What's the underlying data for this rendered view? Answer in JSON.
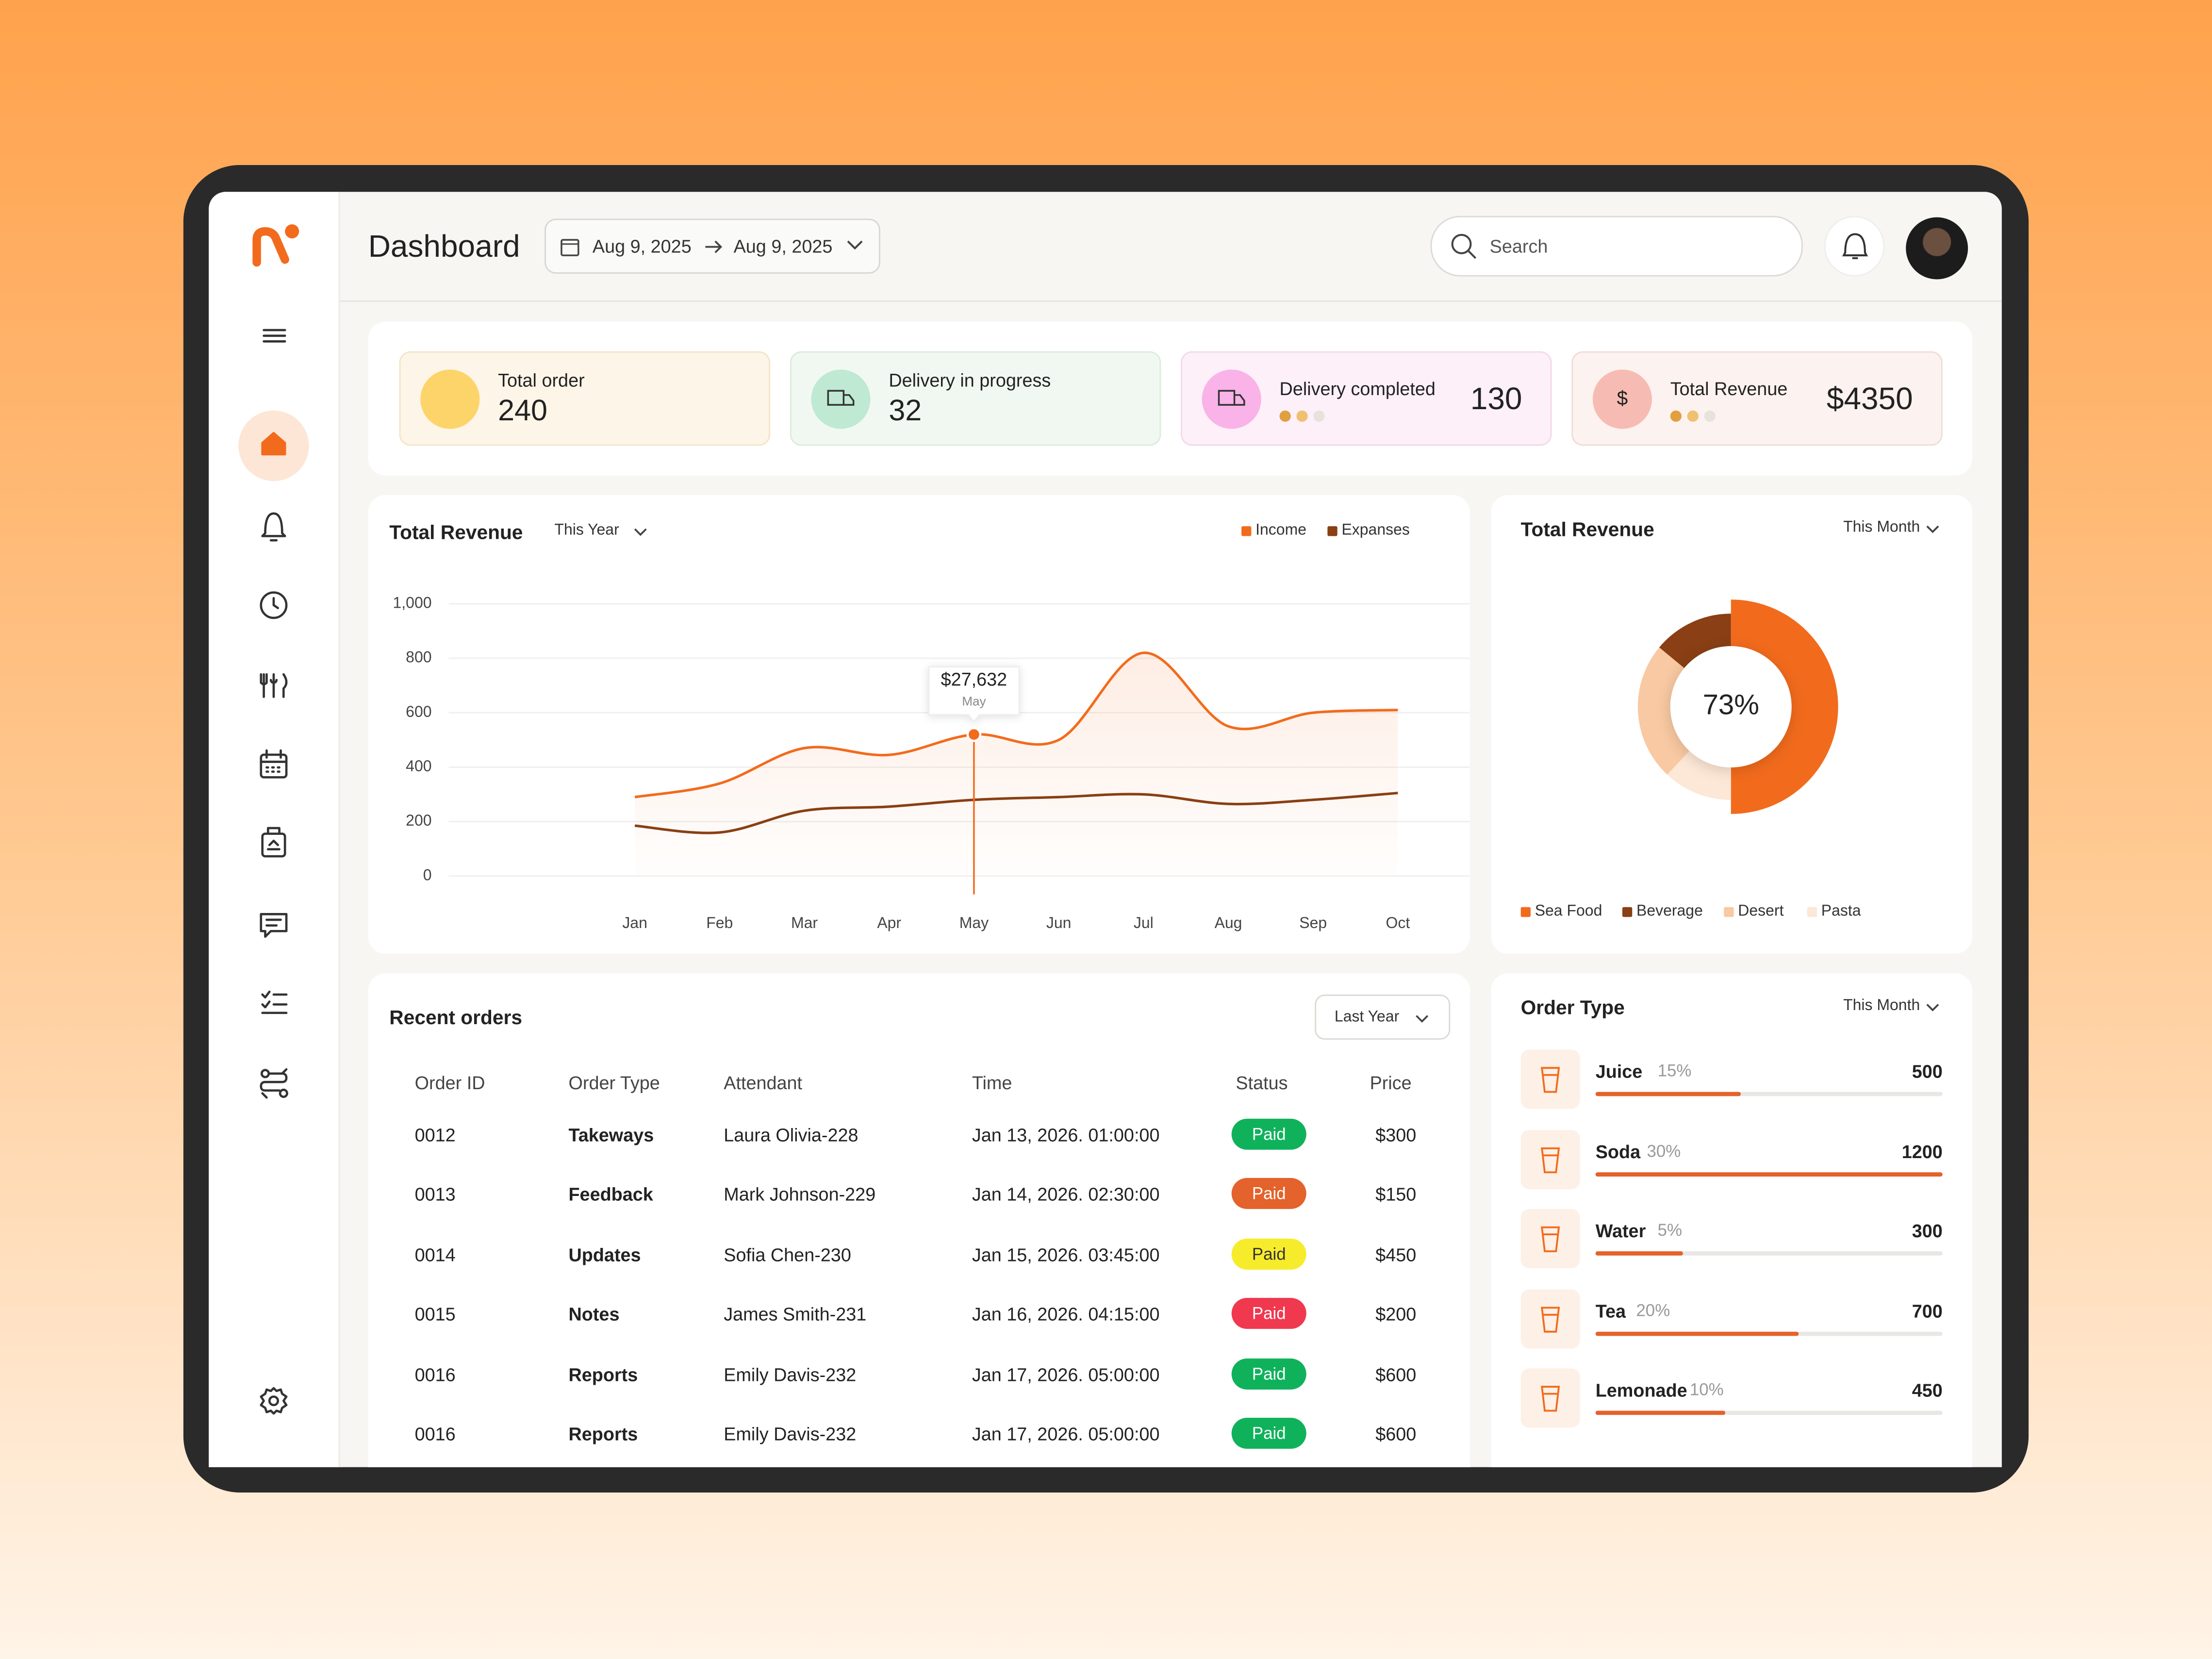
{
  "header": {
    "title": "Dashboard",
    "date_from": "Aug 9, 2025",
    "date_to": "Aug 9, 2025",
    "search_placeholder": "Search"
  },
  "kpis": [
    {
      "label": "Total order",
      "value": 240
    },
    {
      "label": "Delivery in progress",
      "value": 32
    },
    {
      "label": "Delivery completed",
      "value": 130
    },
    {
      "label": "Total Revenue",
      "value": "$4350",
      "icon": "$"
    }
  ],
  "revenue_chart": {
    "type": "line",
    "title": "Total Revenue",
    "period": "This Year",
    "categories": [
      "Jan",
      "Feb",
      "Mar",
      "Apr",
      "May",
      "Jun",
      "Jul",
      "Aug",
      "Sep",
      "Oct"
    ],
    "series": [
      {
        "name": "Income",
        "color": "#f26b1d",
        "values": [
          290,
          340,
          470,
          445,
          520,
          500,
          820,
          550,
          600,
          610
        ]
      },
      {
        "name": "Expanses",
        "color": "#8a3f14",
        "values": [
          185,
          160,
          240,
          255,
          280,
          290,
          300,
          265,
          280,
          305
        ]
      }
    ],
    "ylim": [
      0,
      1000
    ],
    "yticks": [
      0,
      200,
      400,
      600,
      800,
      {
        "value": 1000,
        "label": "1,000"
      }
    ],
    "grid": true,
    "annotation": {
      "text": "$27,632",
      "category": "May"
    }
  },
  "revenue_donut": {
    "type": "pie",
    "title": "Total Revenue",
    "period": "This Month",
    "center_label": "73%",
    "categories": [
      "Sea Food",
      "Beverage",
      "Desert",
      "Pasta"
    ],
    "values": [
      50,
      14,
      24,
      12
    ],
    "colors": [
      "#f26b1d",
      "#8a3f14",
      "#f8c9a2",
      "#fde7d6"
    ]
  },
  "recent_orders": {
    "title": "Recent orders",
    "period": "Last Year",
    "columns": [
      "Order ID",
      "Order Type",
      "Attendant",
      "Time",
      "Status",
      "Price"
    ],
    "rows": [
      [
        "0012",
        "Takeways",
        "Laura Olivia-228",
        "Jan 13, 2026. 01:00:00",
        "Paid",
        "$300"
      ],
      [
        "0013",
        "Feedback",
        "Mark Johnson-229",
        "Jan 14, 2026. 02:30:00",
        "Paid",
        "$150"
      ],
      [
        "0014",
        "Updates",
        "Sofia Chen-230",
        "Jan 15, 2026. 03:45:00",
        "Paid",
        "$450"
      ],
      [
        "0015",
        "Notes",
        "James Smith-231",
        "Jan 16, 2026. 04:15:00",
        "Paid",
        "$200"
      ],
      [
        "0016",
        "Reports",
        "Emily Davis-232",
        "Jan 17, 2026. 05:00:00",
        "Paid",
        "$600"
      ],
      [
        "0016",
        "Reports",
        "Emily Davis-232",
        "Jan 17, 2026. 05:00:00",
        "Paid",
        "$600"
      ]
    ],
    "status_colors": [
      "#0fb25b",
      "#e4622b",
      "#f7ec2b",
      "#f0384f",
      "#0fb25b",
      "#0fb25b"
    ]
  },
  "order_type": {
    "title": "Order Type",
    "period": "This Month",
    "items": [
      {
        "name": "Juice",
        "share": "15%",
        "value": 500
      },
      {
        "name": "Soda",
        "share": "30%",
        "value": 1200
      },
      {
        "name": "Water",
        "share": "5%",
        "value": 300
      },
      {
        "name": "Tea",
        "share": "20%",
        "value": 700
      },
      {
        "name": "Lemonade",
        "share": "10%",
        "value": 450
      }
    ]
  }
}
